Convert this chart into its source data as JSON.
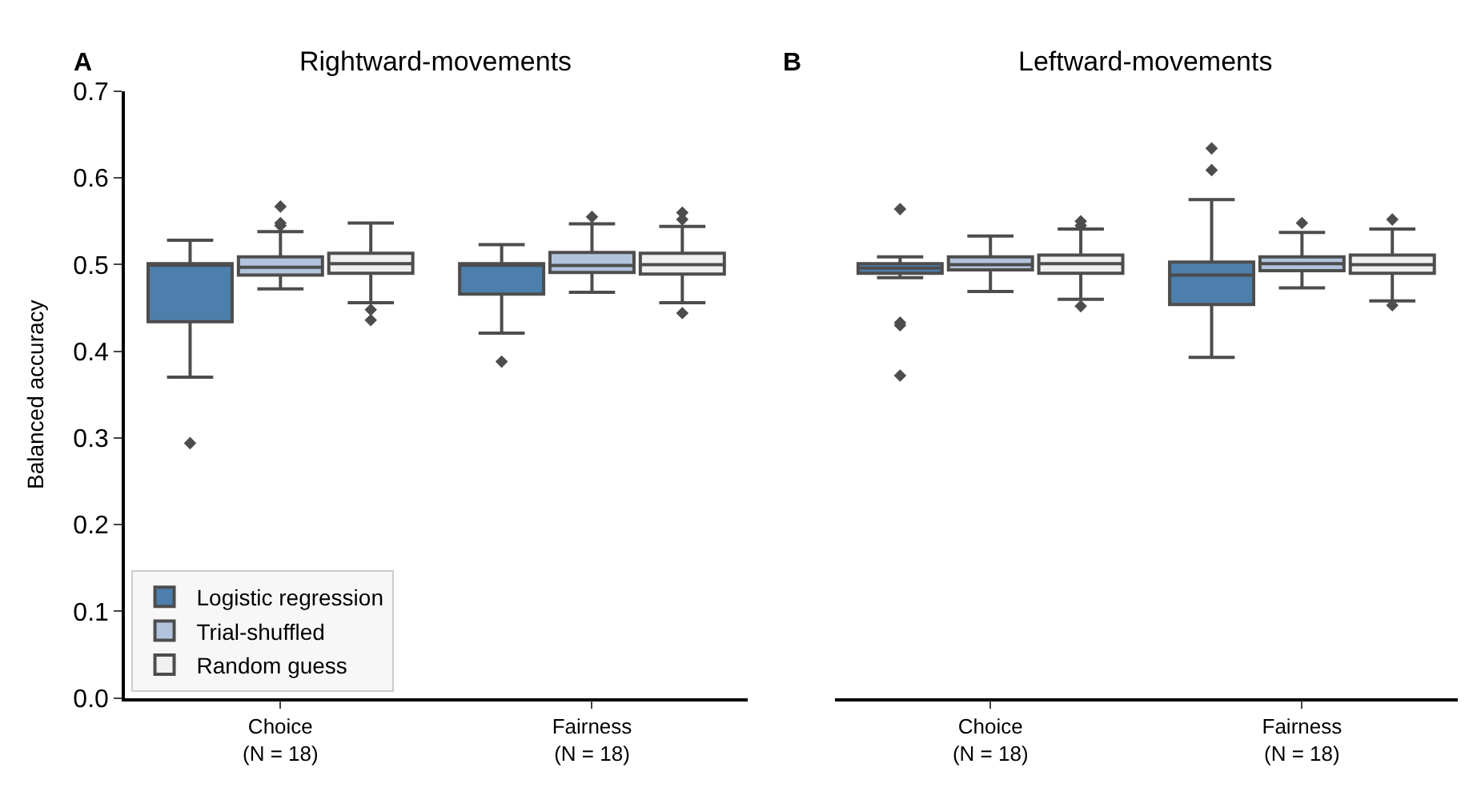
{
  "chart_data": [
    {
      "type": "box",
      "title": "Rightward-movements",
      "annotations": [
        "A"
      ],
      "ylabel": "Balanced accuracy",
      "categories": [
        "Choice\n(N = 18)",
        "Fairness\n(N = 18)"
      ],
      "ylim": [
        0,
        0.7
      ],
      "yticks": [
        {
          "value": 0,
          "label": "0.0"
        },
        0.1,
        0.2,
        0.3,
        0.4,
        0.5,
        0.6,
        0.7
      ],
      "legend": "bottom left",
      "marker": "diamond",
      "series": [
        {
          "name": "Logistic regression",
          "color": "#4c7fab",
          "boxes": [
            {
              "low": 0.37,
              "q1": 0.434,
              "median": 0.5,
              "q3": 0.501,
              "high": 0.528,
              "outliers": [
                0.294
              ]
            },
            {
              "low": 0.421,
              "q1": 0.466,
              "median": 0.5,
              "q3": 0.501,
              "high": 0.523,
              "outliers": [
                0.388
              ]
            }
          ]
        },
        {
          "name": "Trial-shuffled",
          "color": "#b2c4dc",
          "boxes": [
            {
              "low": 0.472,
              "q1": 0.488,
              "median": 0.497,
              "q3": 0.509,
              "high": 0.538,
              "outliers": [
                0.545,
                0.548,
                0.567
              ]
            },
            {
              "low": 0.468,
              "q1": 0.491,
              "median": 0.499,
              "q3": 0.514,
              "high": 0.547,
              "outliers": [
                0.555
              ]
            }
          ]
        },
        {
          "name": "Random guess",
          "color": "#f0f0f0",
          "boxes": [
            {
              "low": 0.456,
              "q1": 0.49,
              "median": 0.501,
              "q3": 0.513,
              "high": 0.548,
              "outliers": [
                0.448,
                0.436
              ]
            },
            {
              "low": 0.456,
              "q1": 0.489,
              "median": 0.5,
              "q3": 0.513,
              "high": 0.544,
              "outliers": [
                0.56,
                0.552,
                0.444
              ]
            }
          ]
        }
      ]
    },
    {
      "type": "box",
      "title": "Leftward-movements",
      "annotations": [
        "B"
      ],
      "categories": [
        "Choice\n(N = 18)",
        "Fairness\n(N = 18)"
      ],
      "ylim": [
        0,
        0.7
      ],
      "tick_labels": "x",
      "marker": "diamond",
      "series": [
        {
          "color": "#4c7fab",
          "boxes": [
            {
              "low": 0.485,
              "q1": 0.49,
              "median": 0.496,
              "q3": 0.501,
              "high": 0.509,
              "outliers": [
                0.564,
                0.433,
                0.43,
                0.372
              ]
            },
            {
              "low": 0.393,
              "q1": 0.454,
              "median": 0.488,
              "q3": 0.503,
              "high": 0.575,
              "outliers": [
                0.609,
                0.634
              ]
            }
          ]
        },
        {
          "color": "#b2c4dc",
          "boxes": [
            {
              "low": 0.469,
              "q1": 0.494,
              "median": 0.5,
              "q3": 0.509,
              "high": 0.533
            },
            {
              "low": 0.473,
              "q1": 0.493,
              "median": 0.501,
              "q3": 0.509,
              "high": 0.537,
              "outliers": [
                0.548
              ]
            }
          ]
        },
        {
          "color": "#f0f0f0",
          "boxes": [
            {
              "low": 0.46,
              "q1": 0.49,
              "median": 0.501,
              "q3": 0.511,
              "high": 0.541,
              "outliers": [
                0.55,
                0.545,
                0.452
              ]
            },
            {
              "low": 0.458,
              "q1": 0.49,
              "median": 0.5,
              "q3": 0.511,
              "high": 0.541,
              "outliers": [
                0.552,
                0.453
              ]
            }
          ]
        }
      ]
    }
  ]
}
